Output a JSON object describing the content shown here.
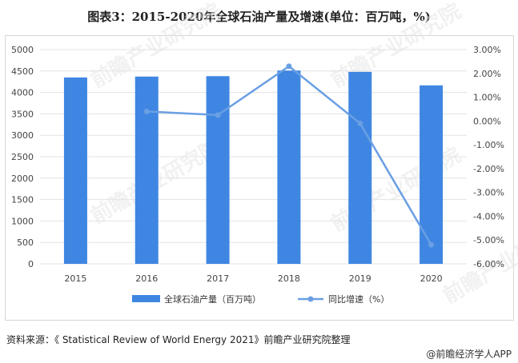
{
  "title": "图表3：2015-2020年全球石油产量及增速(单位：百万吨，%)",
  "source": "资料来源：《 Statistical Review of World Energy 2021》前瞻产业研究院整理",
  "brand": "@前瞻经济学人APP",
  "watermark": "前瞻产业研究院",
  "chart_data": {
    "type": "bar",
    "categories": [
      "2015",
      "2016",
      "2017",
      "2018",
      "2019",
      "2020"
    ],
    "series": [
      {
        "name": "全球石油产量（百万吨）",
        "type": "bar",
        "axis": "left",
        "color": "#3f86e2",
        "values": [
          4350,
          4370,
          4380,
          4510,
          4480,
          4165
        ]
      },
      {
        "name": "同比增速（%）",
        "type": "line",
        "axis": "right",
        "color": "#6a9fe3",
        "values": [
          null,
          0.4,
          0.25,
          2.3,
          -0.1,
          -5.2
        ]
      }
    ],
    "y_left": {
      "min": 0,
      "max": 5000,
      "step": 500,
      "ticks": [
        "0",
        "500",
        "1000",
        "1500",
        "2000",
        "2500",
        "3000",
        "3500",
        "4000",
        "4500",
        "5000"
      ]
    },
    "y_right": {
      "min": -6,
      "max": 3,
      "step": 1,
      "ticks": [
        "-6.00%",
        "-5.00%",
        "-4.00%",
        "-3.00%",
        "-2.00%",
        "-1.00%",
        "0.00%",
        "1.00%",
        "2.00%",
        "3.00%"
      ]
    },
    "grid": true,
    "legend_position": "bottom"
  }
}
